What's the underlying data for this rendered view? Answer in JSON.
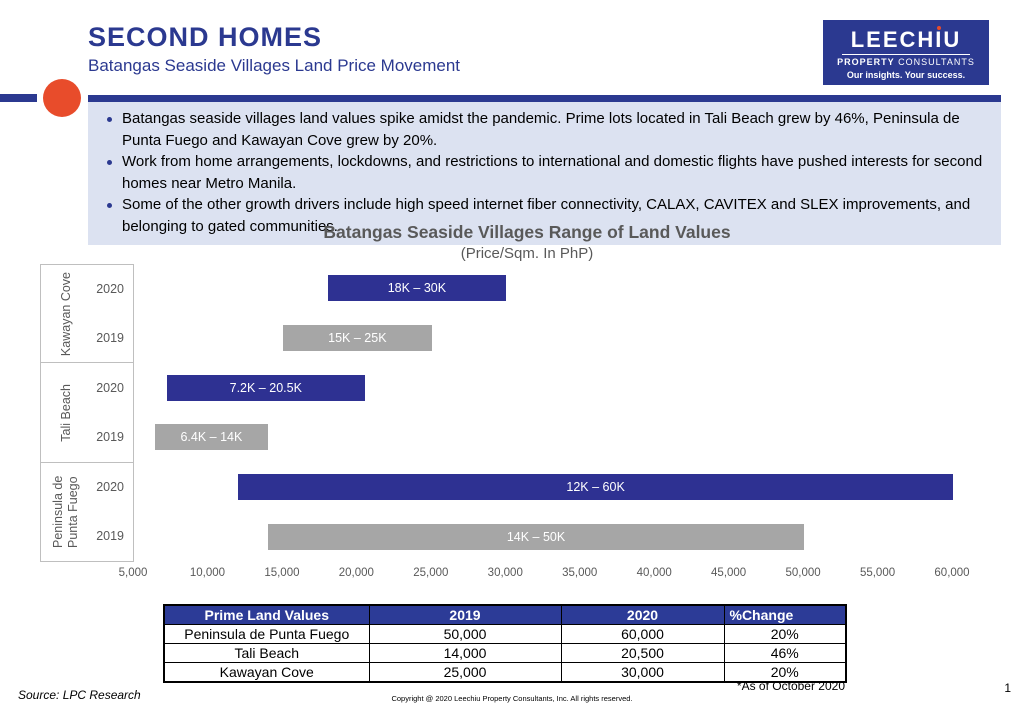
{
  "header": {
    "title": "SECOND HOMES",
    "subtitle": "Batangas Seaside Villages Land Price Movement",
    "logo": {
      "name": "LEECHIU",
      "tagline_bold": "PROPERTY",
      "tagline_rest": " CONSULTANTS",
      "motto": "Our insights. Your success."
    }
  },
  "highlights": {
    "bullets": [
      "Batangas seaside villages land values spike amidst the pandemic. Prime lots located in Tali Beach grew by 46%, Peninsula de Punta Fuego and Kawayan Cove grew by 20%.",
      "Work from home arrangements, lockdowns, and restrictions to international and domestic flights have pushed interests for second homes near Metro Manila.",
      "Some of the other growth drivers include high speed internet fiber connectivity, CALAX, CAVITEX and SLEX improvements, and belonging to gated communities."
    ]
  },
  "chart_data": {
    "type": "bar",
    "variant": "horizontal-range-bars",
    "title": "Batangas Seaside Villages Range of Land Values",
    "subtitle": "(Price/Sqm. In PhP)",
    "x_min": 5000,
    "x_max": 60000,
    "x_ticks": [
      {
        "value": 5000,
        "label": "5,000"
      },
      {
        "value": 10000,
        "label": "10,000"
      },
      {
        "value": 15000,
        "label": "15,000"
      },
      {
        "value": 20000,
        "label": "20,000"
      },
      {
        "value": 25000,
        "label": "25,000"
      },
      {
        "value": 30000,
        "label": "30,000"
      },
      {
        "value": 35000,
        "label": "35,000"
      },
      {
        "value": 40000,
        "label": "40,000"
      },
      {
        "value": 45000,
        "label": "45,000"
      },
      {
        "value": 50000,
        "label": "50,000"
      },
      {
        "value": 55000,
        "label": "55,000"
      },
      {
        "value": 60000,
        "label": "60,000"
      }
    ],
    "series_colors": {
      "2020": "#2E3192",
      "2019": "#A6A6A6"
    },
    "groups": [
      {
        "category": "Kawayan Cove",
        "rows": [
          {
            "year": "2020",
            "min": 18000,
            "max": 30000,
            "label": "18K – 30K"
          },
          {
            "year": "2019",
            "min": 15000,
            "max": 25000,
            "label": "15K – 25K"
          }
        ]
      },
      {
        "category": "Tali Beach",
        "rows": [
          {
            "year": "2020",
            "min": 7200,
            "max": 20500,
            "label": "7.2K – 20.5K"
          },
          {
            "year": "2019",
            "min": 6400,
            "max": 14000,
            "label": "6.4K – 14K"
          }
        ]
      },
      {
        "category": "Peninsula de Punta Fuego",
        "rows": [
          {
            "year": "2020",
            "min": 12000,
            "max": 60000,
            "label": "12K – 60K"
          },
          {
            "year": "2019",
            "min": 14000,
            "max": 50000,
            "label": "14K – 50K"
          }
        ]
      }
    ]
  },
  "table": {
    "headers": [
      "Prime Land Values",
      "2019",
      "2020",
      "%Change"
    ],
    "rows": [
      [
        "Peninsula de Punta Fuego",
        "50,000",
        "60,000",
        "20%"
      ],
      [
        "Tali Beach",
        "14,000",
        "20,500",
        "46%"
      ],
      [
        "Kawayan Cove",
        "25,000",
        "30,000",
        "20%"
      ]
    ],
    "footnote": "*As of October 2020"
  },
  "footer": {
    "source": "Source: LPC Research",
    "copyright": "Copyright @ 2020 Leechiu Property Consultants, Inc. All rights reserved.",
    "page": "1"
  },
  "colors": {
    "corporate_blue": "#2B3990",
    "bar_blue_2020": "#2E3192",
    "bar_gray_2019": "#A6A6A6",
    "highlight_box_bg": "#DCE2F1",
    "table_header_bg": "#2C3B97",
    "accent_orange": "#E84C2B",
    "chart_text_gray": "#595959"
  }
}
